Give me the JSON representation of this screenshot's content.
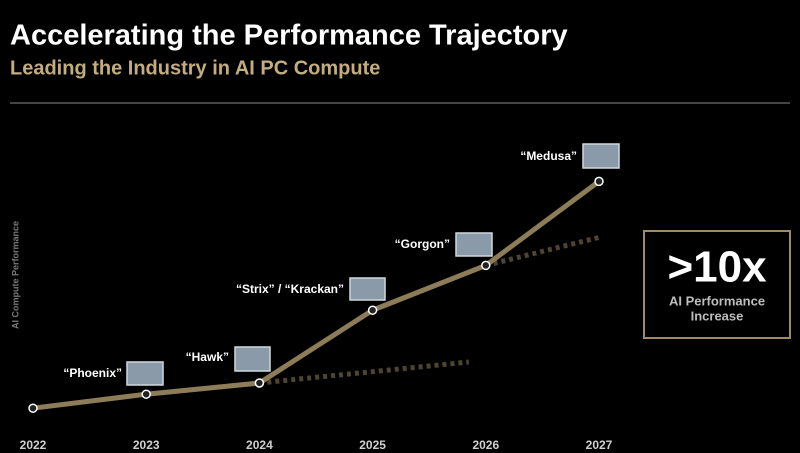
{
  "chart_data": {
    "type": "line",
    "title": "Accelerating the Performance Trajectory",
    "subtitle": "Leading the Industry in AI PC Compute",
    "y_label": "AI Compute Performance",
    "x": [
      2022,
      2023,
      2024,
      2025,
      2026,
      2027
    ],
    "xlim": [
      2022,
      2027
    ],
    "xticks": [
      2022,
      2023,
      2024,
      2025,
      2026,
      2027
    ],
    "ylim": [
      0,
      100
    ],
    "series": [
      {
        "color": "#8c7d58",
        "values": [
          6,
          11,
          15,
          41,
          57,
          87
        ]
      }
    ],
    "projections": [
      {
        "color": "#4d4432",
        "x": [
          2024,
          2025.85
        ],
        "values": [
          15,
          22.5
        ]
      },
      {
        "color": "#4d4432",
        "x": [
          2026,
          2027
        ],
        "values": [
          57,
          67
        ]
      }
    ],
    "point_labels": [
      "“Phoenix”",
      "“Hawk”",
      "“Strix” / “Krackan”",
      "“Gorgon”",
      "“Medusa”"
    ],
    "callout": {
      "value": ">10x",
      "text": [
        "AI Performance",
        "Increase"
      ]
    }
  }
}
